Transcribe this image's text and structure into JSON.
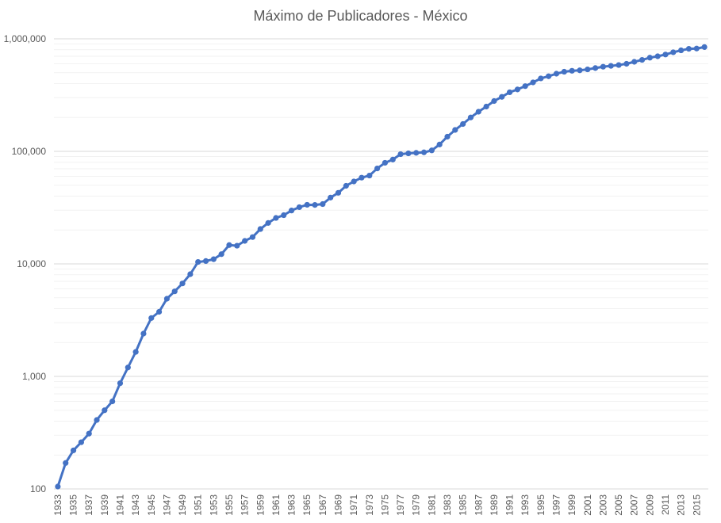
{
  "chart_data": {
    "type": "line",
    "title": "Máximo de Publicadores - México",
    "xlabel": "",
    "ylabel": "",
    "y_scale": "log",
    "ylim": [
      100,
      1000000
    ],
    "y_ticks": [
      100,
      1000,
      10000,
      100000,
      1000000
    ],
    "y_tick_labels": [
      "100",
      "1,000",
      "10,000",
      "100,000",
      "1,000,000"
    ],
    "x_tick_labels": [
      "1933",
      "1935",
      "1937",
      "1939",
      "1941",
      "1943",
      "1945",
      "1947",
      "1949",
      "1951",
      "1953",
      "1955",
      "1957",
      "1959",
      "1961",
      "1963",
      "1965",
      "1967",
      "1969",
      "1971",
      "1973",
      "1975",
      "1977",
      "1979",
      "1981",
      "1983",
      "1985",
      "1987",
      "1989",
      "1991",
      "1993",
      "1995",
      "1997",
      "1999",
      "2001",
      "2003",
      "2005",
      "2007",
      "2009",
      "2011",
      "2013",
      "2015"
    ],
    "grid": true,
    "legend": "none",
    "series": [
      {
        "color": "#4472C4",
        "x": [
          1933,
          1934,
          1935,
          1936,
          1937,
          1938,
          1939,
          1940,
          1941,
          1942,
          1943,
          1944,
          1945,
          1946,
          1947,
          1948,
          1949,
          1950,
          1951,
          1952,
          1953,
          1954,
          1955,
          1956,
          1957,
          1958,
          1959,
          1960,
          1961,
          1962,
          1963,
          1964,
          1965,
          1966,
          1967,
          1968,
          1969,
          1970,
          1971,
          1972,
          1973,
          1974,
          1975,
          1976,
          1977,
          1978,
          1979,
          1980,
          1981,
          1982,
          1983,
          1984,
          1985,
          1986,
          1987,
          1988,
          1989,
          1990,
          1991,
          1992,
          1993,
          1994,
          1995,
          1996,
          1997,
          1998,
          1999,
          2000,
          2001,
          2002,
          2003,
          2004,
          2005,
          2006,
          2007,
          2008,
          2009,
          2010,
          2011,
          2012,
          2013,
          2014,
          2015,
          2016
        ],
        "values": [
          105,
          170,
          220,
          260,
          310,
          410,
          500,
          600,
          870,
          1200,
          1650,
          2400,
          3300,
          3750,
          4900,
          5700,
          6700,
          8100,
          10400,
          10600,
          11000,
          12200,
          14700,
          14500,
          16000,
          17300,
          20400,
          23100,
          25600,
          27100,
          29800,
          31900,
          33500,
          33400,
          34000,
          38800,
          42800,
          49400,
          54000,
          58400,
          60900,
          70500,
          79100,
          84500,
          94400,
          96000,
          97000,
          98000,
          102000,
          115000,
          135000,
          155000,
          175000,
          200000,
          225000,
          250000,
          280000,
          305000,
          335000,
          355000,
          380000,
          410000,
          445000,
          465000,
          490000,
          510000,
          520000,
          525000,
          535000,
          550000,
          565000,
          575000,
          585000,
          600000,
          625000,
          650000,
          680000,
          700000,
          725000,
          760000,
          790000,
          815000,
          820000,
          845000
        ]
      }
    ]
  }
}
